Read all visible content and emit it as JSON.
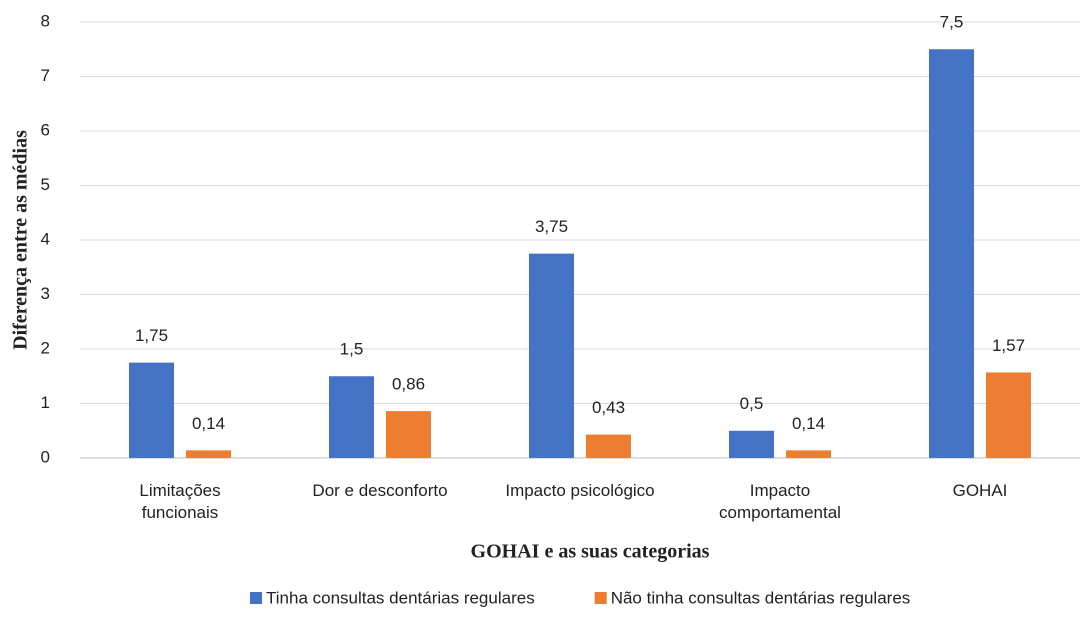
{
  "chart_data": {
    "type": "bar",
    "categories": [
      "Limitações funcionais",
      "Dor e desconforto",
      "Impacto psicológico",
      "Impacto comportamental",
      "GOHAI"
    ],
    "series": [
      {
        "name": "Tinha consultas dentárias regulares",
        "color": "#4472c4",
        "values": [
          1.75,
          1.5,
          3.75,
          0.5,
          7.5
        ],
        "value_labels": [
          "1,75",
          "1,5",
          "3,75",
          "0,5",
          "7,5"
        ]
      },
      {
        "name": "Não tinha consultas dentárias regulares",
        "color": "#ed7d31",
        "values": [
          0.14,
          0.86,
          0.43,
          0.14,
          1.57
        ],
        "value_labels": [
          "0,14",
          "0,86",
          "0,43",
          "0,14",
          "1,57"
        ]
      }
    ],
    "xlabel": "GOHAI e as suas categorias",
    "ylabel": "Diferença entre as médias",
    "ylim": [
      0,
      8
    ],
    "yticks": [
      0,
      1,
      2,
      3,
      4,
      5,
      6,
      7,
      8
    ],
    "grid": true,
    "legend": "bottom"
  }
}
